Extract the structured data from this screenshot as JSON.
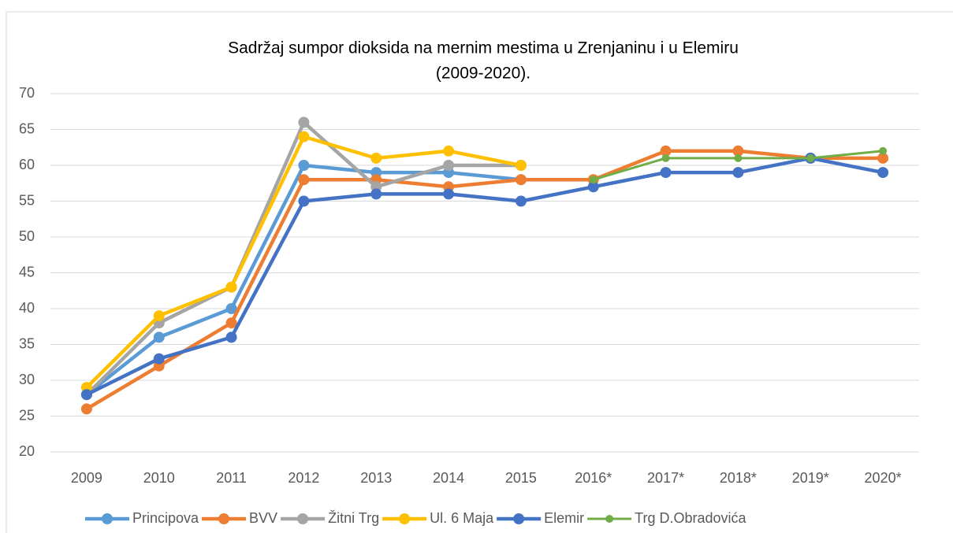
{
  "chart_data": {
    "type": "line",
    "title": [
      "Sadržaj sumpor dioksida na mernim mestima u Zrenjaninu i u  Elemiru",
      "(2009-2020)."
    ],
    "categories": [
      "2009",
      "2010",
      "2011",
      "2012",
      "2013",
      "2014",
      "2015",
      "2016*",
      "2017*",
      "2018*",
      "2019*",
      "2020*"
    ],
    "series": [
      {
        "name": "Principova",
        "color": "#5b9bd5",
        "values": [
          28,
          36,
          40,
          60,
          59,
          59,
          58,
          null,
          null,
          null,
          null,
          null
        ]
      },
      {
        "name": "BVV",
        "color": "#ed7d31",
        "values": [
          26,
          32,
          38,
          58,
          58,
          57,
          58,
          58,
          62,
          62,
          61,
          61
        ]
      },
      {
        "name": "Žitni Trg",
        "color": "#a5a5a5",
        "values": [
          28,
          38,
          43,
          66,
          57,
          60,
          60,
          null,
          null,
          null,
          null,
          null
        ]
      },
      {
        "name": "Ul. 6 Maja",
        "color": "#ffc000",
        "values": [
          29,
          39,
          43,
          64,
          61,
          62,
          60,
          null,
          null,
          null,
          null,
          null
        ]
      },
      {
        "name": "Elemir",
        "color": "#4472c4",
        "values": [
          28,
          33,
          36,
          55,
          56,
          56,
          55,
          57,
          59,
          59,
          61,
          59
        ]
      },
      {
        "name": "Trg D.Obradovića",
        "color": "#70ad47",
        "values": [
          null,
          null,
          null,
          null,
          null,
          null,
          null,
          58,
          61,
          61,
          61,
          62
        ]
      }
    ],
    "ylim": [
      20,
      70
    ],
    "yticks": [
      20,
      25,
      30,
      35,
      40,
      45,
      50,
      55,
      60,
      65,
      70
    ],
    "grid": true,
    "legend": "bottom"
  }
}
